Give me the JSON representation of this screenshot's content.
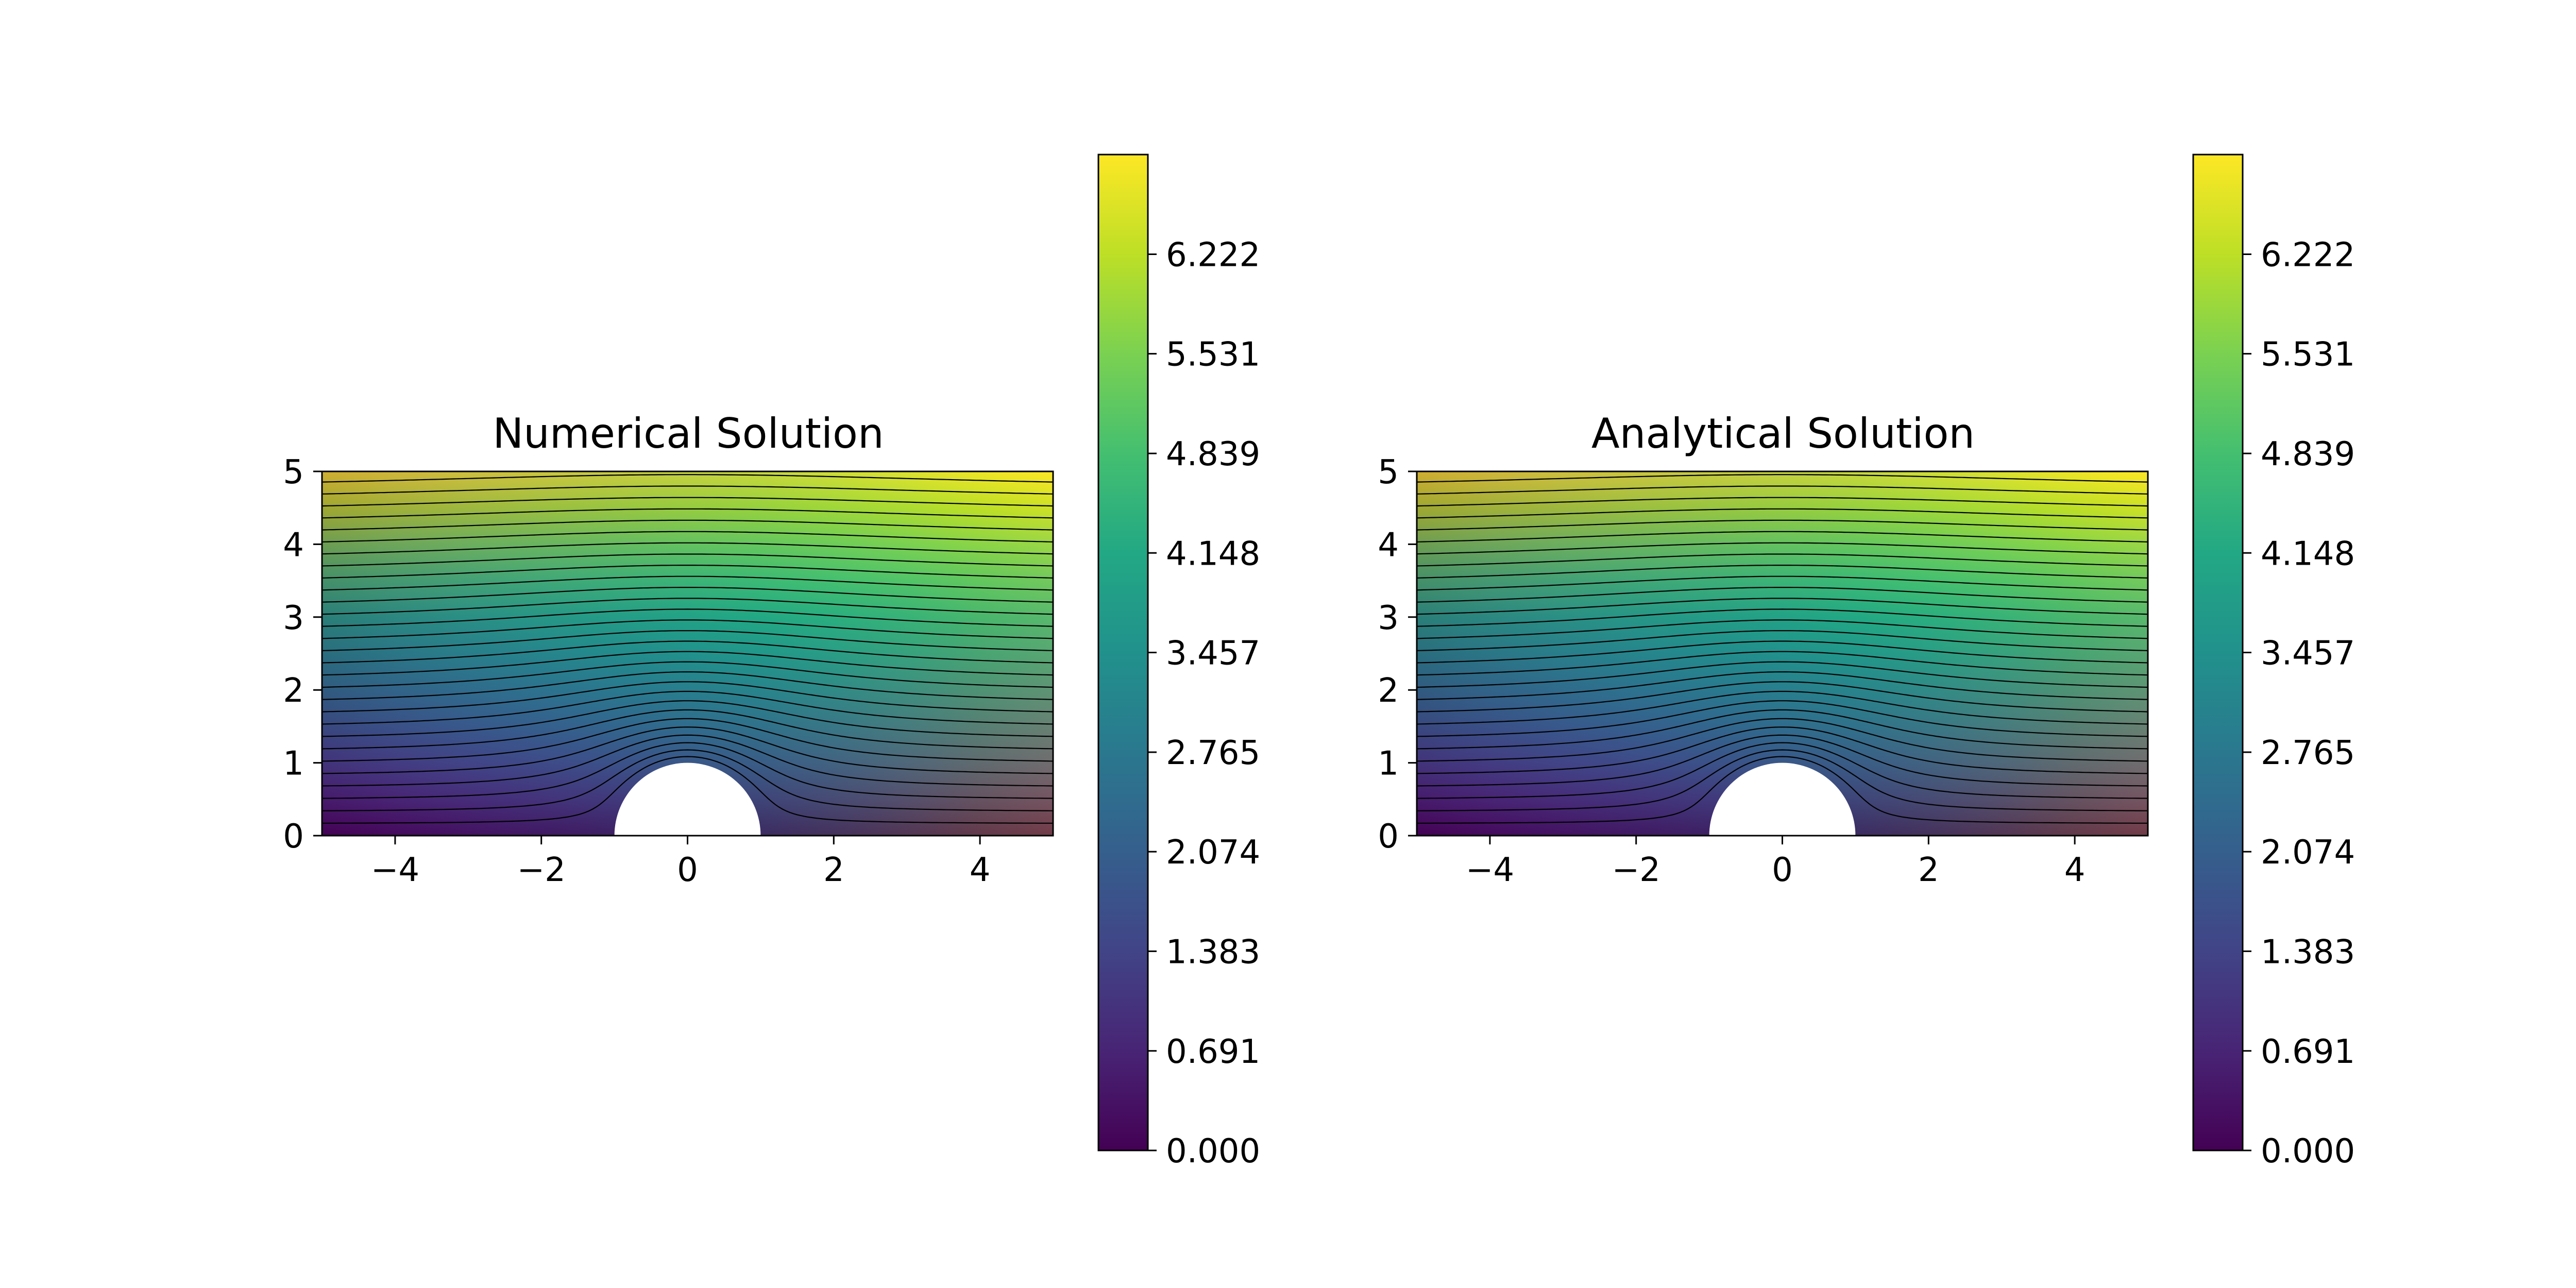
{
  "chart_data": [
    {
      "type": "contour",
      "title": "Numerical Solution",
      "xlabel": "",
      "ylabel": "",
      "xlim": [
        -5,
        5
      ],
      "ylim": [
        0,
        5
      ],
      "xticks": [
        -4,
        -2,
        0,
        2,
        4
      ],
      "xtick_labels": [
        "−4",
        "−2",
        "0",
        "2",
        "4"
      ],
      "yticks": [
        0,
        1,
        2,
        3,
        4,
        5
      ],
      "ytick_labels": [
        "0",
        "1",
        "2",
        "3",
        "4",
        "5"
      ],
      "obstacle": {
        "shape": "half-disk",
        "center": [
          0,
          0
        ],
        "radius": 1
      },
      "colormap": "viridis",
      "colorbar": {
        "min": 0,
        "max": 6.914,
        "ticks": [
          0.0,
          0.691,
          1.383,
          2.074,
          2.765,
          3.457,
          4.148,
          4.839,
          5.531,
          6.222
        ],
        "tick_labels": [
          "0.000",
          "0.691",
          "1.383",
          "2.074",
          "2.765",
          "3.457",
          "4.148",
          "4.839",
          "5.531",
          "6.222"
        ]
      },
      "grid": false
    },
    {
      "type": "contour",
      "title": "Analytical Solution",
      "xlabel": "",
      "ylabel": "",
      "xlim": [
        -5,
        5
      ],
      "ylim": [
        0,
        5
      ],
      "xticks": [
        -4,
        -2,
        0,
        2,
        4
      ],
      "xtick_labels": [
        "−4",
        "−2",
        "0",
        "2",
        "4"
      ],
      "yticks": [
        0,
        1,
        2,
        3,
        4,
        5
      ],
      "ytick_labels": [
        "0",
        "1",
        "2",
        "3",
        "4",
        "5"
      ],
      "obstacle": {
        "shape": "half-disk",
        "center": [
          0,
          0
        ],
        "radius": 1
      },
      "colormap": "viridis",
      "colorbar": {
        "min": 0,
        "max": 6.914,
        "ticks": [
          0.0,
          0.691,
          1.383,
          2.074,
          2.765,
          3.457,
          4.148,
          4.839,
          5.531,
          6.222
        ],
        "tick_labels": [
          "0.000",
          "0.691",
          "1.383",
          "2.074",
          "2.765",
          "3.457",
          "4.148",
          "4.839",
          "5.531",
          "6.222"
        ]
      },
      "grid": false
    }
  ]
}
